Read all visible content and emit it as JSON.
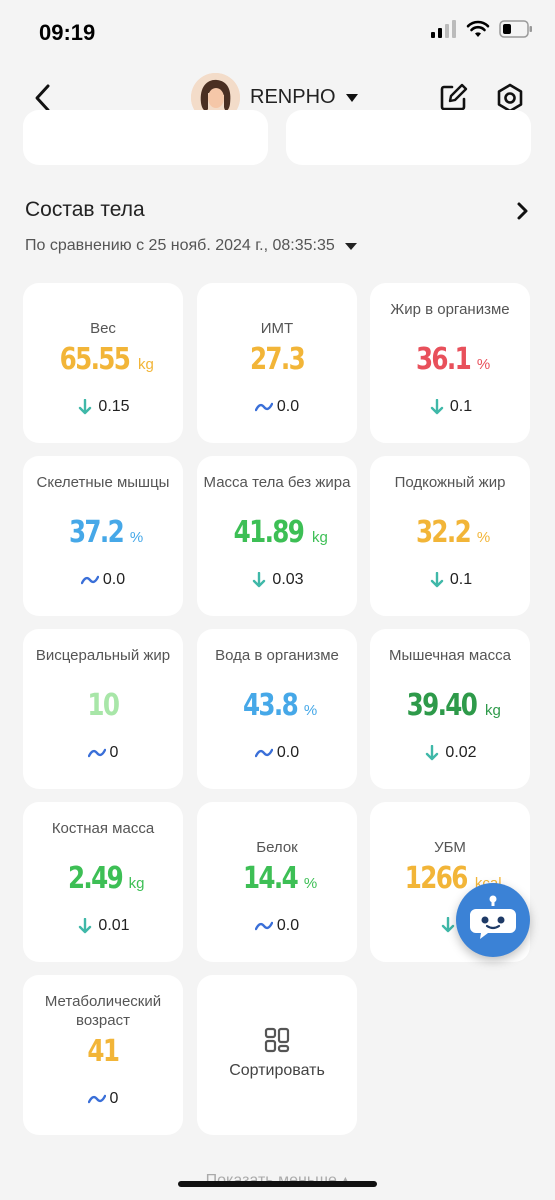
{
  "status_bar": {
    "time": "09:19"
  },
  "header": {
    "profile_name": "RENPHO"
  },
  "section": {
    "title": "Состав тела",
    "comparison": "По сравнению с 25 нояб. 2024 г., 08:35:35"
  },
  "metrics": [
    {
      "label": "Вес",
      "value": "65.55",
      "unit": "kg",
      "change": "0.15",
      "trend": "down",
      "color": "#f2b538"
    },
    {
      "label": "ИМТ",
      "value": "27.3",
      "unit": "",
      "change": "0.0",
      "trend": "flat",
      "color": "#f2b538"
    },
    {
      "label": "Жир в организме",
      "value": "36.1",
      "unit": "%",
      "change": "0.1",
      "trend": "down",
      "color": "#e8505b"
    },
    {
      "label": "Скелетные мышцы",
      "value": "37.2",
      "unit": "%",
      "change": "0.0",
      "trend": "flat",
      "color": "#46a8e8"
    },
    {
      "label": "Масса тела без жира",
      "value": "41.89",
      "unit": "kg",
      "change": "0.03",
      "trend": "down",
      "color": "#3dbf55"
    },
    {
      "label": "Подкожный жир",
      "value": "32.2",
      "unit": "%",
      "change": "0.1",
      "trend": "down",
      "color": "#f2b538"
    },
    {
      "label": "Висцеральный жир",
      "value": "10",
      "unit": "",
      "change": "0",
      "trend": "flat",
      "color": "#a8e6a8"
    },
    {
      "label": "Вода в организме",
      "value": "43.8",
      "unit": "%",
      "change": "0.0",
      "trend": "flat",
      "color": "#46a8e8"
    },
    {
      "label": "Мышечная масса",
      "value": "39.40",
      "unit": "kg",
      "change": "0.02",
      "trend": "down",
      "color": "#2e9a4a"
    },
    {
      "label": "Костная масса",
      "value": "2.49",
      "unit": "kg",
      "change": "0.01",
      "trend": "down",
      "color": "#3dbf55"
    },
    {
      "label": "Белок",
      "value": "14.4",
      "unit": "%",
      "change": "0.0",
      "trend": "flat",
      "color": "#3dbf55"
    },
    {
      "label": "УБМ",
      "value": "1266",
      "unit": "kcal",
      "change": "",
      "trend": "down",
      "color": "#f2b538"
    },
    {
      "label": "Метаболический возраст",
      "value": "41",
      "unit": "",
      "change": "0",
      "trend": "flat",
      "color": "#f2b538"
    }
  ],
  "sort": {
    "label": "Сортировать"
  },
  "show_less": {
    "label": "Показать меньше"
  },
  "colors": {
    "trend_down": "#3fb8a8",
    "trend_flat": "#3a6fd8",
    "assistant": "#3b82d6"
  },
  "icons": [
    "back-arrow-icon",
    "dropdown-caret-icon",
    "edit-icon",
    "settings-icon",
    "chevron-right-icon",
    "sort-grid-icon",
    "assistant-bot-icon"
  ]
}
